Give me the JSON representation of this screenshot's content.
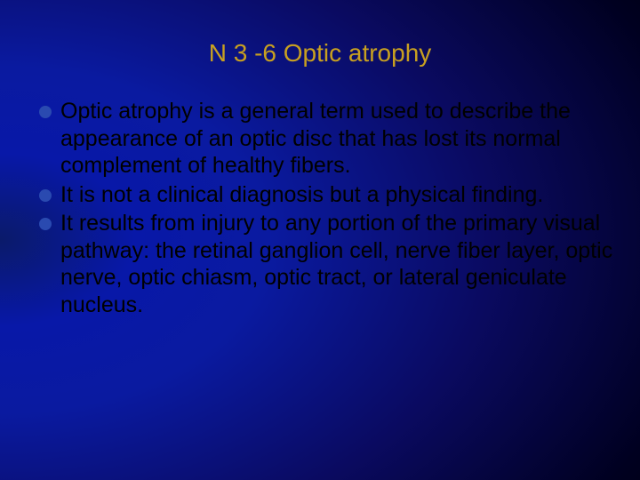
{
  "slide": {
    "title": "N 3 -6  Optic atrophy",
    "title_color": "#c8a020",
    "title_fontsize": 28,
    "background": {
      "type": "radial-gradient",
      "colors": [
        "#0a1a6a",
        "#0818a8",
        "#0a1aa0",
        "#0a0a60",
        "#000020",
        "#000000"
      ]
    },
    "bullet_color": "#2a4ab0",
    "body_text_color": "#000000",
    "body_fontsize": 25,
    "bullets": [
      "Optic atrophy is a general term used to describe the appearance of an optic disc that has lost its normal complement of healthy fibers.",
      "It is not a clinical diagnosis but a physical finding.",
      "It results from injury to any portion of the primary visual pathway: the retinal ganglion cell, nerve fiber layer, optic nerve, optic chiasm, optic tract, or lateral geniculate nucleus."
    ]
  }
}
